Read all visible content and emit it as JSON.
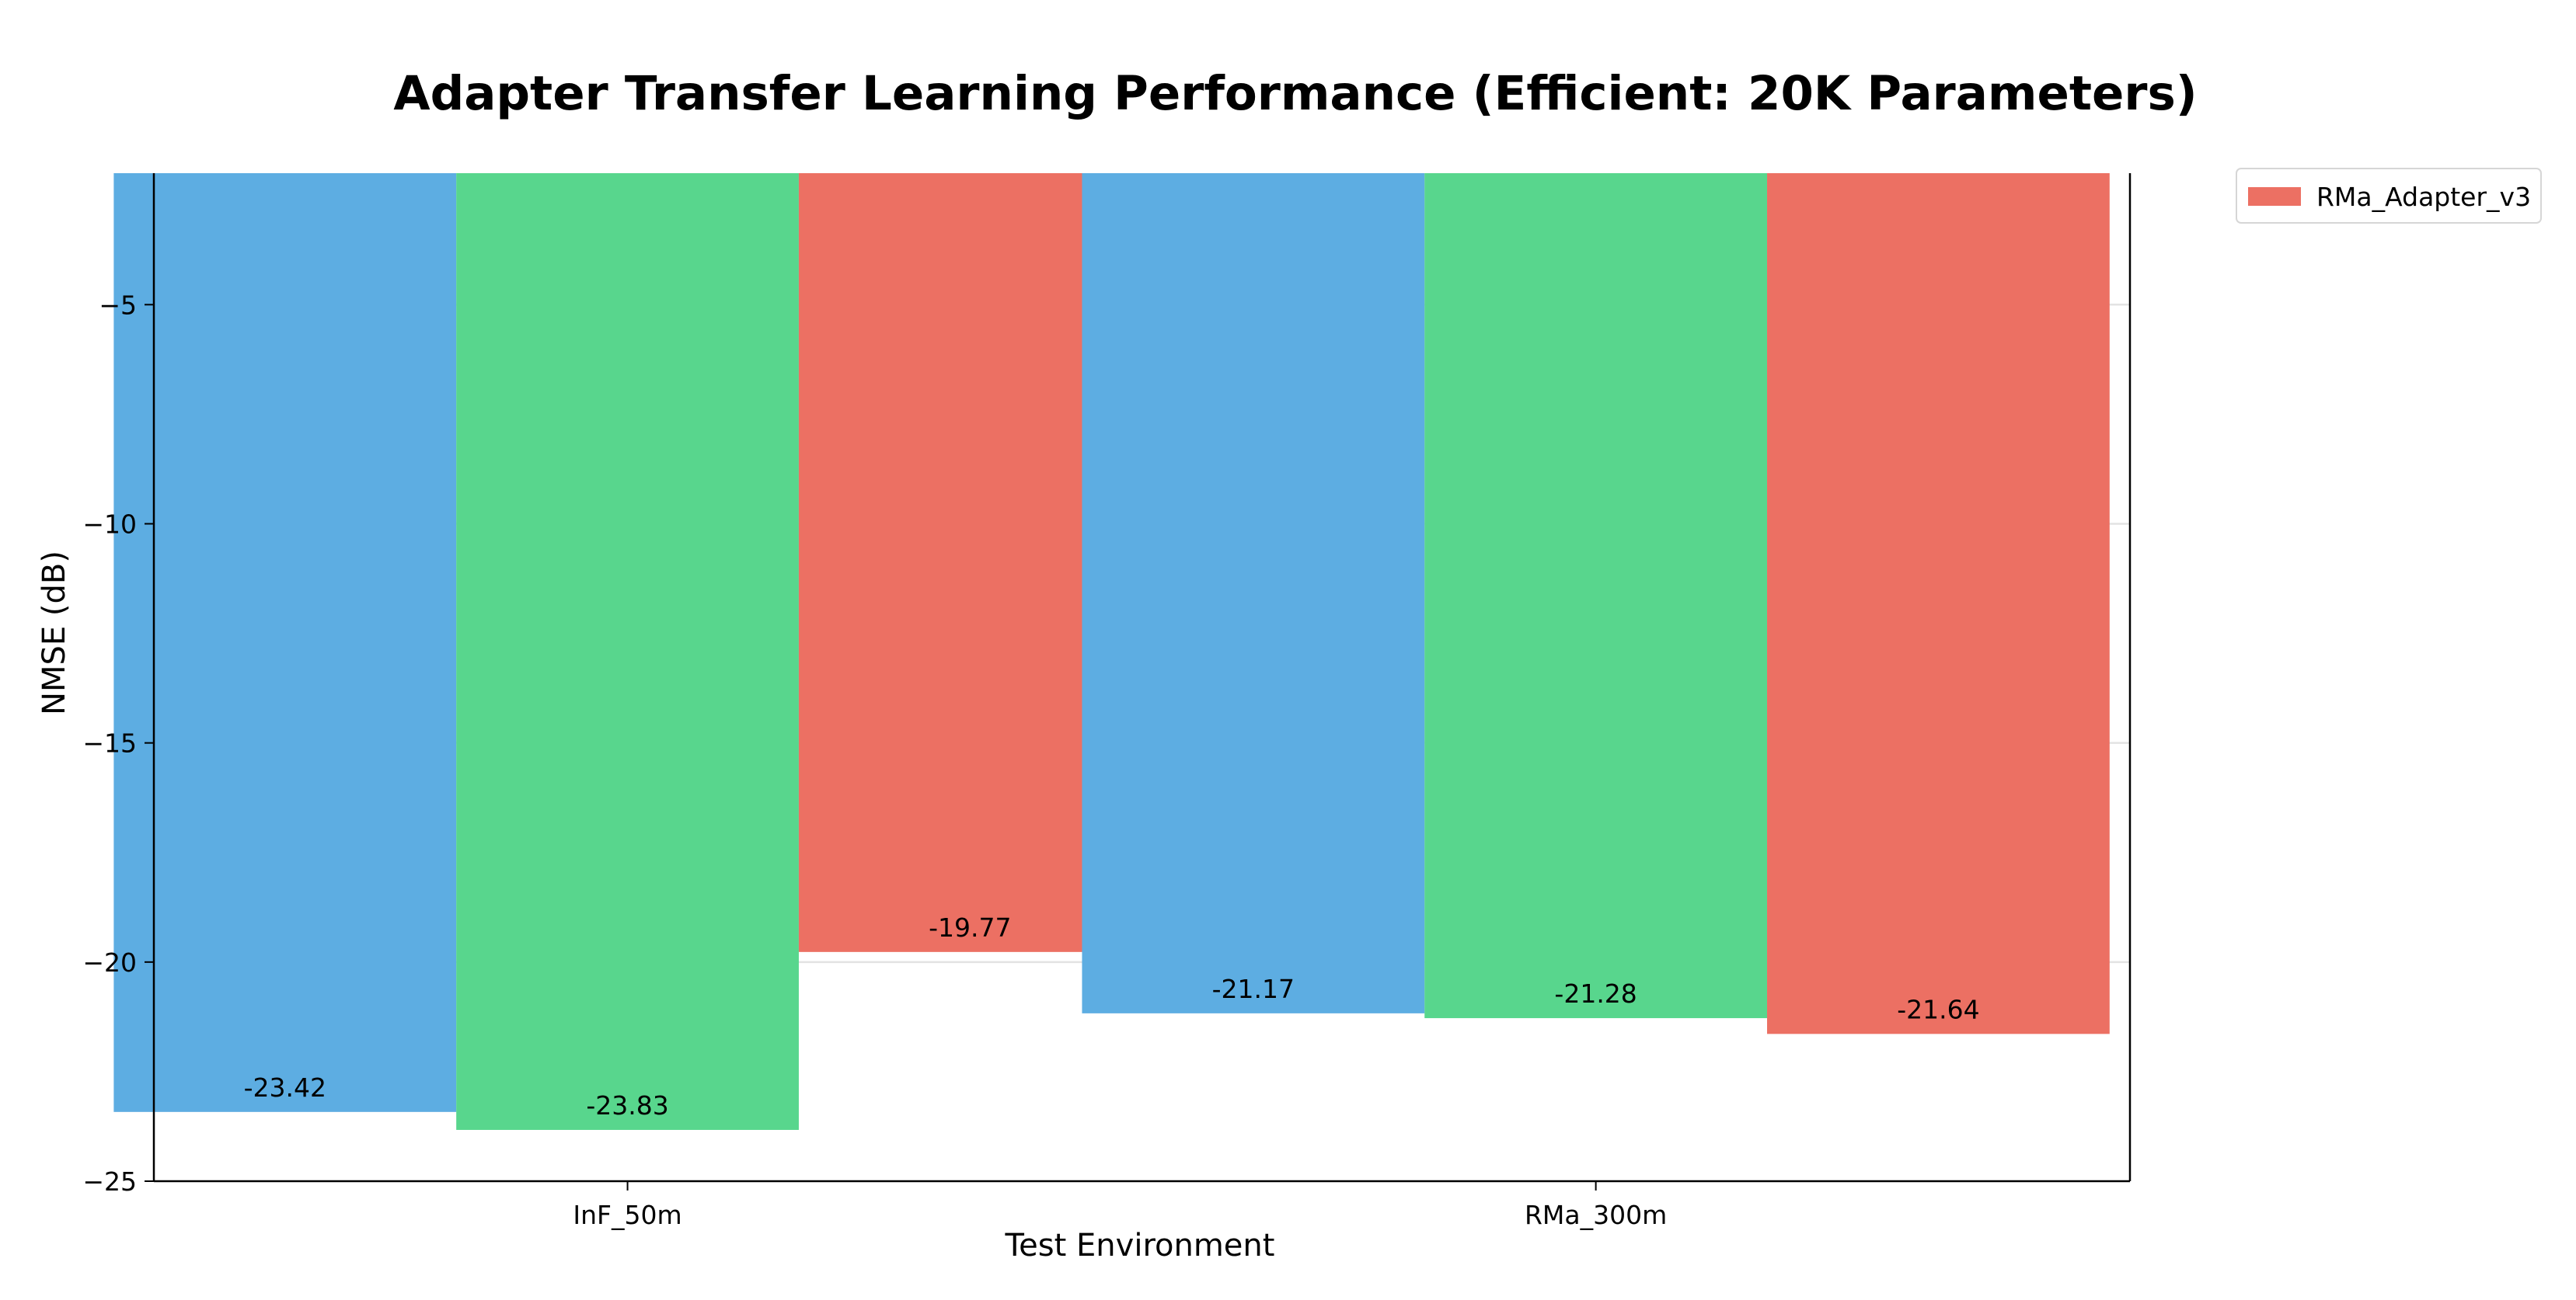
{
  "chart_data": {
    "type": "bar",
    "title": "Adapter Transfer Learning Performance (Efficient: 20K Parameters)",
    "xlabel": "Test Environment",
    "ylabel": "NMSE (dB)",
    "categories": [
      "InF_50m",
      "RMa_300m"
    ],
    "series": [
      {
        "values": [
          -23.42,
          -21.17
        ],
        "color": "#5DADE2"
      },
      {
        "values": [
          -23.83,
          -21.28
        ],
        "color": "#58D68D"
      },
      {
        "name": "RMa_Adapter_v3",
        "values": [
          -19.77,
          -21.64
        ],
        "color": "#EC7063"
      }
    ],
    "ylim": [
      -25,
      -2
    ],
    "yticks": [
      -5,
      -10,
      -15,
      -20,
      -25
    ],
    "ytick_labels": [
      "−5",
      "−10",
      "−15",
      "−20",
      "−25"
    ],
    "data_labels": [
      [
        "-23.42",
        "-21.17"
      ],
      [
        "-23.83",
        "-21.28"
      ],
      [
        "-19.77",
        "-21.64"
      ]
    ],
    "grid": "y",
    "legend_position": "top-right-outside"
  }
}
